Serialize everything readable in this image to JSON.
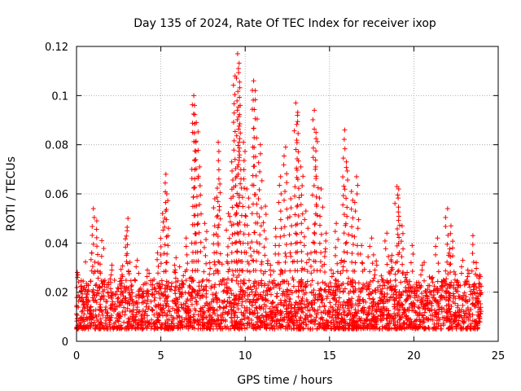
{
  "chart_data": {
    "type": "scatter",
    "title": "Day 135 of 2024, Rate Of TEC Index for receiver ixop",
    "xlabel": "GPS time / hours",
    "ylabel": "ROTI / TECUs",
    "xlim": [
      0,
      25
    ],
    "ylim": [
      0,
      0.12
    ],
    "xticks": [
      0,
      5,
      10,
      15,
      20,
      25
    ],
    "xtick_labels": [
      "0",
      "5",
      "10",
      "15",
      "20",
      "25"
    ],
    "yticks": [
      0,
      0.02,
      0.04,
      0.06,
      0.08,
      0.1,
      0.12
    ],
    "ytick_labels": [
      "0",
      "0.02",
      "0.04",
      "0.06",
      "0.08",
      "0.1",
      "0.12"
    ],
    "grid": true,
    "marker": "plus",
    "color": "#ff0000",
    "series": [
      {
        "name": "ROTI",
        "x": [
          0.05,
          0.3,
          0.6,
          0.9,
          1.0,
          1.2,
          1.4,
          1.5,
          1.8,
          2.1,
          2.4,
          2.7,
          3.0,
          3.05,
          3.3,
          3.6,
          3.9,
          4.2,
          4.5,
          4.8,
          5.1,
          5.3,
          5.35,
          5.6,
          5.9,
          6.2,
          6.5,
          6.8,
          6.95,
          7.0,
          7.1,
          7.3,
          7.6,
          7.9,
          8.2,
          8.4,
          8.5,
          8.7,
          9.0,
          9.2,
          9.4,
          9.55,
          9.6,
          9.7,
          9.9,
          10.1,
          10.3,
          10.5,
          10.6,
          10.9,
          11.2,
          11.5,
          11.8,
          12.1,
          12.4,
          12.7,
          13.0,
          13.1,
          13.3,
          13.6,
          13.9,
          14.1,
          14.2,
          14.5,
          14.8,
          15.1,
          15.4,
          15.7,
          15.9,
          16.0,
          16.3,
          16.6,
          16.9,
          17.2,
          17.5,
          17.8,
          18.1,
          18.4,
          18.7,
          19.0,
          19.1,
          19.3,
          19.6,
          19.9,
          20.2,
          20.5,
          20.8,
          21.1,
          21.4,
          21.7,
          22.0,
          22.2,
          22.3,
          22.6,
          22.9,
          23.2,
          23.5,
          23.7,
          23.9
        ],
        "y": [
          0.028,
          0.012,
          0.018,
          0.036,
          0.054,
          0.049,
          0.015,
          0.041,
          0.022,
          0.031,
          0.014,
          0.027,
          0.045,
          0.05,
          0.017,
          0.033,
          0.011,
          0.029,
          0.019,
          0.036,
          0.052,
          0.068,
          0.06,
          0.021,
          0.034,
          0.015,
          0.042,
          0.026,
          0.1,
          0.096,
          0.089,
          0.071,
          0.048,
          0.032,
          0.058,
          0.081,
          0.064,
          0.025,
          0.052,
          0.073,
          0.108,
          0.117,
          0.111,
          0.096,
          0.081,
          0.062,
          0.038,
          0.106,
          0.102,
          0.08,
          0.055,
          0.031,
          0.046,
          0.067,
          0.079,
          0.058,
          0.097,
          0.092,
          0.071,
          0.053,
          0.036,
          0.094,
          0.085,
          0.062,
          0.044,
          0.029,
          0.048,
          0.033,
          0.086,
          0.073,
          0.061,
          0.067,
          0.039,
          0.021,
          0.042,
          0.031,
          0.025,
          0.044,
          0.035,
          0.063,
          0.062,
          0.047,
          0.028,
          0.039,
          0.022,
          0.031,
          0.018,
          0.026,
          0.042,
          0.024,
          0.054,
          0.047,
          0.038,
          0.022,
          0.033,
          0.029,
          0.043,
          0.032,
          0.027
        ],
        "baseline_band": [
          0.005,
          0.025
        ]
      }
    ]
  }
}
